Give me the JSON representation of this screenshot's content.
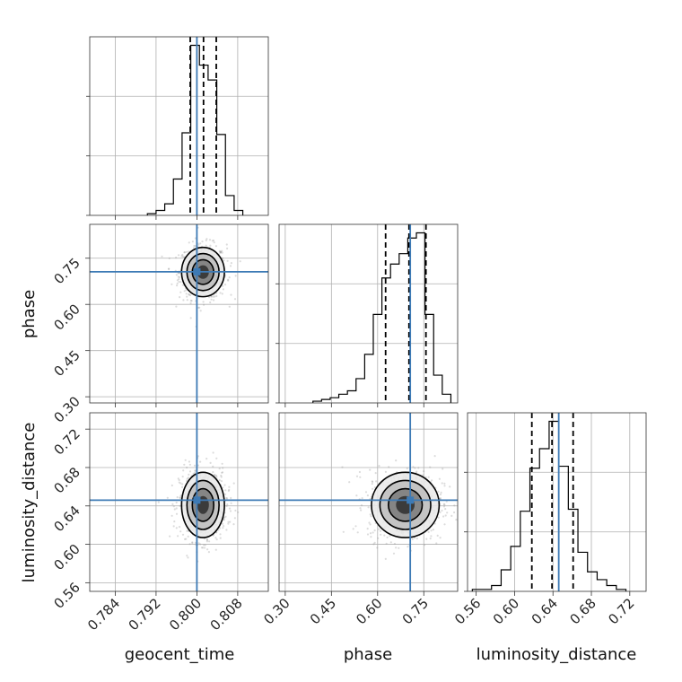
{
  "chart_data": {
    "type": "corner",
    "parameters": [
      "geocent_time",
      "phase",
      "luminosity_distance"
    ],
    "truths": {
      "geocent_time": 0.8,
      "phase": 0.706,
      "luminosity_distance": 0.646
    },
    "ranges": {
      "geocent_time": [
        0.779,
        0.814
      ],
      "phase": [
        0.28,
        0.86
      ],
      "luminosity_distance": [
        0.551,
        0.737
      ]
    },
    "ticks": {
      "geocent_time": [
        "0.784",
        "0.792",
        "0.800",
        "0.808"
      ],
      "phase": [
        "0.30",
        "0.45",
        "0.60",
        "0.75"
      ],
      "luminosity_distance": [
        "0.56",
        "0.60",
        "0.64",
        "0.68",
        "0.72"
      ]
    },
    "quantiles": {
      "geocent_time": [
        0.7987,
        0.8013,
        0.8038
      ],
      "phase": [
        0.626,
        0.702,
        0.757
      ],
      "luminosity_distance": [
        0.618,
        0.639,
        0.661
      ]
    },
    "histograms": {
      "geocent_time": {
        "edges": [
          0.7903,
          0.792,
          0.7937,
          0.7954,
          0.7971,
          0.7988,
          0.8005,
          0.8022,
          0.8039,
          0.8056,
          0.8073,
          0.809
        ],
        "counts": [
          1,
          3,
          7,
          22,
          50,
          103,
          91,
          82,
          49,
          12,
          3
        ]
      },
      "phase": {
        "edges": [
          0.39,
          0.418,
          0.446,
          0.474,
          0.502,
          0.53,
          0.558,
          0.586,
          0.614,
          0.642,
          0.67,
          0.698,
          0.726,
          0.754,
          0.782,
          0.81,
          0.838
        ],
        "counts": [
          1,
          2,
          3,
          5,
          7,
          14,
          28,
          51,
          72,
          80,
          86,
          95,
          98,
          51,
          16,
          5
        ]
      },
      "luminosity_distance": {
        "edges": [
          0.556,
          0.566,
          0.576,
          0.586,
          0.596,
          0.606,
          0.616,
          0.626,
          0.636,
          0.646,
          0.656,
          0.666,
          0.676,
          0.686,
          0.696,
          0.706,
          0.716
        ],
        "counts": [
          1,
          1,
          3,
          11,
          23,
          41,
          63,
          73,
          87,
          64,
          42,
          20,
          10,
          6,
          3,
          1
        ]
      }
    },
    "panels_2d": [
      {
        "x": "geocent_time",
        "y": "phase",
        "x_center": 0.8012,
        "y_center": 0.705,
        "x_sigma": 0.0021,
        "y_sigma": 0.04
      },
      {
        "x": "geocent_time",
        "y": "luminosity_distance",
        "x_center": 0.8012,
        "y_center": 0.641,
        "x_sigma": 0.0021,
        "y_sigma": 0.017
      },
      {
        "x": "phase",
        "y": "luminosity_distance",
        "x_center": 0.69,
        "y_center": 0.641,
        "x_sigma": 0.055,
        "y_sigma": 0.017
      }
    ],
    "grid": true,
    "colors": {
      "truth": "#3d7ab5",
      "histogram": "#000000",
      "scatter": "#9a9a9a"
    }
  }
}
